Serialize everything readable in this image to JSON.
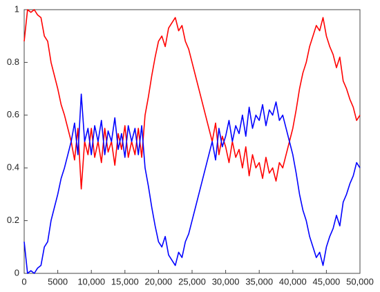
{
  "chart_data": {
    "type": "line",
    "x": [
      0,
      500,
      1000,
      1500,
      2000,
      2500,
      3000,
      3500,
      4000,
      4500,
      5000,
      5500,
      6000,
      6500,
      7000,
      7500,
      8000,
      8500,
      9000,
      9500,
      10000,
      10500,
      11000,
      11500,
      12000,
      12500,
      13000,
      13500,
      14000,
      14500,
      15000,
      15500,
      16000,
      16500,
      17000,
      17500,
      18000,
      18500,
      19000,
      19500,
      20000,
      20500,
      21000,
      21500,
      22000,
      22500,
      23000,
      23500,
      24000,
      24500,
      25000,
      25500,
      26000,
      26500,
      27000,
      27500,
      28000,
      28500,
      29000,
      29500,
      30000,
      30500,
      31000,
      31500,
      32000,
      32500,
      33000,
      33500,
      34000,
      34500,
      35000,
      35500,
      36000,
      36500,
      37000,
      37500,
      38000,
      38500,
      39000,
      39500,
      40000,
      40500,
      41000,
      41500,
      42000,
      42500,
      43000,
      43500,
      44000,
      44500,
      45000,
      45500,
      46000,
      46500,
      47000,
      47500,
      48000,
      48500,
      49000,
      49500,
      50000
    ],
    "series": [
      {
        "color": "#ff0000",
        "values": [
          0.88,
          1.0,
          0.99,
          1.0,
          0.98,
          0.97,
          0.9,
          0.88,
          0.8,
          0.75,
          0.7,
          0.64,
          0.6,
          0.55,
          0.5,
          0.43,
          0.55,
          0.32,
          0.5,
          0.45,
          0.55,
          0.44,
          0.5,
          0.42,
          0.55,
          0.46,
          0.5,
          0.41,
          0.53,
          0.47,
          0.56,
          0.44,
          0.5,
          0.45,
          0.55,
          0.44,
          0.6,
          0.67,
          0.75,
          0.82,
          0.88,
          0.9,
          0.86,
          0.93,
          0.95,
          0.97,
          0.92,
          0.94,
          0.88,
          0.85,
          0.8,
          0.75,
          0.7,
          0.65,
          0.6,
          0.55,
          0.5,
          0.57,
          0.45,
          0.52,
          0.48,
          0.42,
          0.5,
          0.44,
          0.47,
          0.4,
          0.48,
          0.37,
          0.45,
          0.4,
          0.42,
          0.36,
          0.44,
          0.38,
          0.4,
          0.35,
          0.42,
          0.4,
          0.45,
          0.5,
          0.55,
          0.62,
          0.7,
          0.76,
          0.8,
          0.86,
          0.9,
          0.94,
          0.92,
          0.97,
          0.9,
          0.86,
          0.83,
          0.78,
          0.82,
          0.73,
          0.7,
          0.66,
          0.63,
          0.58,
          0.6
        ]
      },
      {
        "color": "#0000ff",
        "values": [
          0.12,
          0.0,
          0.01,
          0.0,
          0.02,
          0.03,
          0.1,
          0.12,
          0.2,
          0.25,
          0.3,
          0.36,
          0.4,
          0.45,
          0.5,
          0.57,
          0.45,
          0.68,
          0.5,
          0.55,
          0.45,
          0.56,
          0.5,
          0.58,
          0.45,
          0.54,
          0.5,
          0.59,
          0.47,
          0.53,
          0.44,
          0.56,
          0.5,
          0.55,
          0.45,
          0.56,
          0.4,
          0.33,
          0.25,
          0.18,
          0.12,
          0.1,
          0.14,
          0.07,
          0.05,
          0.03,
          0.08,
          0.06,
          0.12,
          0.15,
          0.2,
          0.25,
          0.3,
          0.35,
          0.4,
          0.45,
          0.5,
          0.43,
          0.55,
          0.48,
          0.52,
          0.58,
          0.5,
          0.56,
          0.53,
          0.6,
          0.52,
          0.63,
          0.55,
          0.6,
          0.58,
          0.64,
          0.56,
          0.62,
          0.6,
          0.65,
          0.58,
          0.6,
          0.55,
          0.5,
          0.45,
          0.38,
          0.3,
          0.24,
          0.2,
          0.14,
          0.1,
          0.06,
          0.08,
          0.03,
          0.1,
          0.14,
          0.17,
          0.22,
          0.18,
          0.27,
          0.3,
          0.34,
          0.37,
          0.42,
          0.4
        ]
      }
    ],
    "xlim": [
      0,
      50000
    ],
    "xticks": [
      0,
      5000,
      {
        "value": 10000,
        "label": "10,000"
      },
      {
        "value": 15000,
        "label": "15,000"
      },
      {
        "value": 20000,
        "label": "20,000"
      },
      {
        "value": 25000,
        "label": "25,000"
      },
      {
        "value": 30000,
        "label": "30,000"
      },
      {
        "value": 35000,
        "label": "35,000"
      },
      {
        "value": 40000,
        "label": "40,000"
      },
      {
        "value": 45000,
        "label": "45,000"
      },
      {
        "value": 50000,
        "label": "50,000"
      }
    ],
    "ylim": [
      0,
      1
    ],
    "yticks": [
      0,
      0.2,
      0.4,
      0.6,
      0.8,
      1
    ],
    "grid": false
  }
}
